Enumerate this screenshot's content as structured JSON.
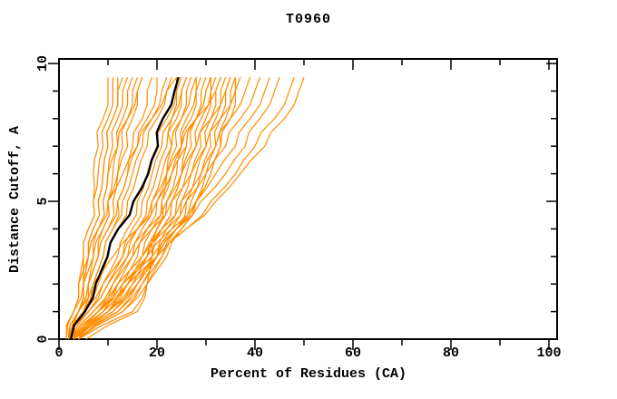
{
  "chart_data": {
    "type": "line",
    "title": "T0960",
    "xlabel": "Percent of Residues (CA)",
    "ylabel": "Distance Cutoff, A",
    "xlim": [
      0,
      101.7
    ],
    "ylim": [
      0,
      10.2
    ],
    "grid": false,
    "legend": false,
    "x_major_ticks": [
      0,
      20,
      40,
      60,
      80,
      100
    ],
    "x_minor_ticks": [
      10,
      30,
      50,
      70,
      90
    ],
    "y_major_ticks": [
      0,
      5,
      10
    ],
    "y_minor_ticks": [
      1,
      2,
      3,
      4,
      6,
      7,
      8,
      9
    ],
    "colors": {
      "model_lines": "#ff8c00",
      "highlight_line": "#000000",
      "frame": "#000000",
      "background": "#ffffff"
    },
    "cutoffs": [
      0,
      1,
      2,
      3,
      4,
      5,
      6,
      7,
      8,
      9,
      9.5
    ],
    "highlight_model": {
      "percents": [
        2.4,
        5.3,
        7.5,
        9.9,
        12.1,
        15.2,
        18.2,
        20.2,
        21.2,
        23.6,
        24.4
      ]
    },
    "orange_models": [
      [
        3,
        4,
        5,
        5,
        6,
        7,
        7,
        8,
        9,
        10,
        10
      ],
      [
        1.5,
        3,
        4,
        5,
        6,
        7,
        8,
        9,
        10,
        11,
        11
      ],
      [
        3,
        4,
        5,
        6,
        7,
        8,
        9,
        10,
        11,
        12,
        12
      ],
      [
        2,
        3,
        5,
        6,
        7,
        8,
        9,
        10,
        11,
        12,
        13
      ],
      [
        3,
        4,
        5,
        6,
        8,
        9,
        10,
        11,
        12,
        13,
        14
      ],
      [
        2,
        4,
        6,
        7,
        8,
        9,
        10,
        12,
        13,
        14,
        15
      ],
      [
        3,
        5,
        6,
        8,
        9,
        10,
        11,
        12,
        14,
        15,
        16
      ],
      [
        2,
        4,
        5,
        7,
        9,
        10,
        12,
        13,
        14,
        16,
        17
      ],
      [
        3,
        4,
        6,
        8,
        10,
        11,
        12,
        14,
        15,
        16,
        17
      ],
      [
        3,
        5,
        7,
        9,
        11,
        12,
        14,
        15,
        17,
        18,
        19
      ],
      [
        2,
        4,
        6,
        8,
        10,
        12,
        14,
        16,
        18,
        20,
        20
      ],
      [
        3,
        5,
        7,
        9,
        11,
        13,
        15,
        17,
        19,
        21,
        22
      ],
      [
        2,
        5,
        8,
        10,
        12,
        14,
        16,
        18,
        20,
        22,
        23
      ],
      [
        3,
        6,
        9,
        12,
        14,
        16,
        18,
        20,
        22,
        24,
        25
      ],
      [
        2,
        6,
        10,
        13,
        15,
        17,
        19,
        21,
        23,
        25,
        26
      ],
      [
        5.5,
        16,
        18,
        19,
        20,
        21,
        22,
        23,
        23,
        24,
        24
      ],
      [
        1.5,
        3,
        4,
        6,
        8,
        10,
        13,
        16,
        19,
        22,
        24
      ],
      [
        3,
        8,
        11,
        14,
        16,
        18,
        20,
        22,
        24,
        25,
        26
      ],
      [
        4,
        9,
        12,
        15,
        17,
        19,
        21,
        23,
        25,
        26,
        27
      ],
      [
        3,
        10,
        13,
        16,
        18,
        20,
        22,
        24,
        25,
        27,
        28
      ],
      [
        4,
        10,
        14,
        17,
        19,
        21,
        23,
        25,
        26,
        28,
        28
      ],
      [
        3,
        11,
        15,
        18,
        20,
        22,
        24,
        25,
        27,
        28,
        29
      ],
      [
        4,
        12,
        16,
        19,
        21,
        23,
        25,
        26,
        28,
        29,
        30
      ],
      [
        3,
        9,
        14,
        18,
        21,
        23,
        25,
        27,
        28,
        30,
        31
      ],
      [
        4,
        13,
        17,
        20,
        22,
        24,
        26,
        28,
        29,
        31,
        31
      ],
      [
        2,
        4,
        7,
        11,
        16,
        20,
        23,
        26,
        28,
        30,
        31
      ],
      [
        3,
        10,
        16,
        20,
        23,
        25,
        27,
        29,
        30,
        31,
        32
      ],
      [
        4,
        15,
        18,
        21,
        24,
        26,
        28,
        30,
        31,
        32,
        33
      ],
      [
        2,
        5,
        9,
        13,
        16,
        19,
        22,
        25,
        28,
        32,
        33
      ],
      [
        3,
        11,
        16,
        20,
        24,
        27,
        29,
        31,
        32,
        33,
        34
      ],
      [
        4,
        13,
        18,
        22,
        25,
        28,
        30,
        32,
        33,
        34,
        35
      ],
      [
        3,
        6,
        10,
        14,
        18,
        22,
        25,
        28,
        31,
        34,
        35
      ],
      [
        3,
        12,
        17,
        21,
        25,
        28,
        31,
        33,
        34,
        35,
        36
      ],
      [
        4,
        10,
        15,
        20,
        24,
        28,
        31,
        33,
        35,
        36,
        36
      ],
      [
        3,
        7,
        11,
        15,
        19,
        23,
        27,
        30,
        33,
        36,
        37
      ],
      [
        4,
        8,
        12,
        17,
        21,
        25,
        29,
        32,
        35,
        38,
        39
      ],
      [
        3,
        7,
        12,
        17,
        22,
        26,
        30,
        34,
        37,
        40,
        41
      ],
      [
        4,
        8,
        13,
        18,
        23,
        28,
        32,
        36,
        39,
        42,
        43
      ],
      [
        3,
        8,
        13,
        19,
        24,
        29,
        34,
        38,
        41,
        44,
        45
      ],
      [
        4,
        9,
        14,
        20,
        26,
        31,
        36,
        40,
        44,
        47,
        48
      ],
      [
        3,
        8,
        14,
        20,
        26,
        32,
        37,
        42,
        46,
        49,
        50
      ]
    ]
  }
}
